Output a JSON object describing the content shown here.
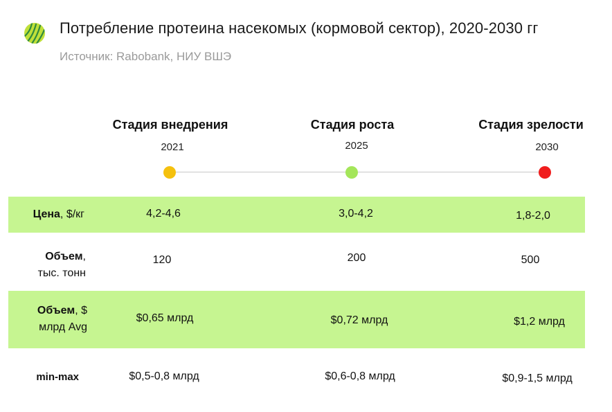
{
  "header": {
    "title": "Потребление протеина насекомых (кормовой сектор), 2020-2030 гг",
    "source": "Источник: Rabobank, НИУ ВШЭ",
    "logo_icon": "leaf-circle-logo"
  },
  "stages": [
    {
      "name": "Стадия внедрения",
      "year": "2021",
      "dot_color": "#f5c10e"
    },
    {
      "name": "Стадия роста",
      "year": "2025",
      "dot_color": "#a4e65a"
    },
    {
      "name": "Стадия зрелости",
      "year": "2030",
      "dot_color": "#f01d1d"
    }
  ],
  "rows": {
    "price": {
      "label_bold": "Цена",
      "label_rest": ", $/кг",
      "values": [
        "4,2-4,6",
        "3,0-4,2",
        "1,8-2,0"
      ]
    },
    "volume_t": {
      "label_bold": "Объем",
      "label_rest": ",",
      "label_line2": "тыс. тонн",
      "values": [
        "120",
        "200",
        "500"
      ]
    },
    "volume_usd": {
      "label_bold": "Объем",
      "label_rest": ", $",
      "label_line2": "млрд Avg",
      "values": [
        "$0,65 млрд",
        "$0,72 млрд",
        "$1,2 млрд"
      ]
    },
    "minmax": {
      "label_bold": "min-max",
      "values": [
        "$0,5-0,8 млрд",
        "$0,6-0,8 млрд",
        "$0,9-1,5 млрд"
      ]
    }
  },
  "colors": {
    "band": "#c6f591",
    "source_text": "#9a9a9a"
  }
}
